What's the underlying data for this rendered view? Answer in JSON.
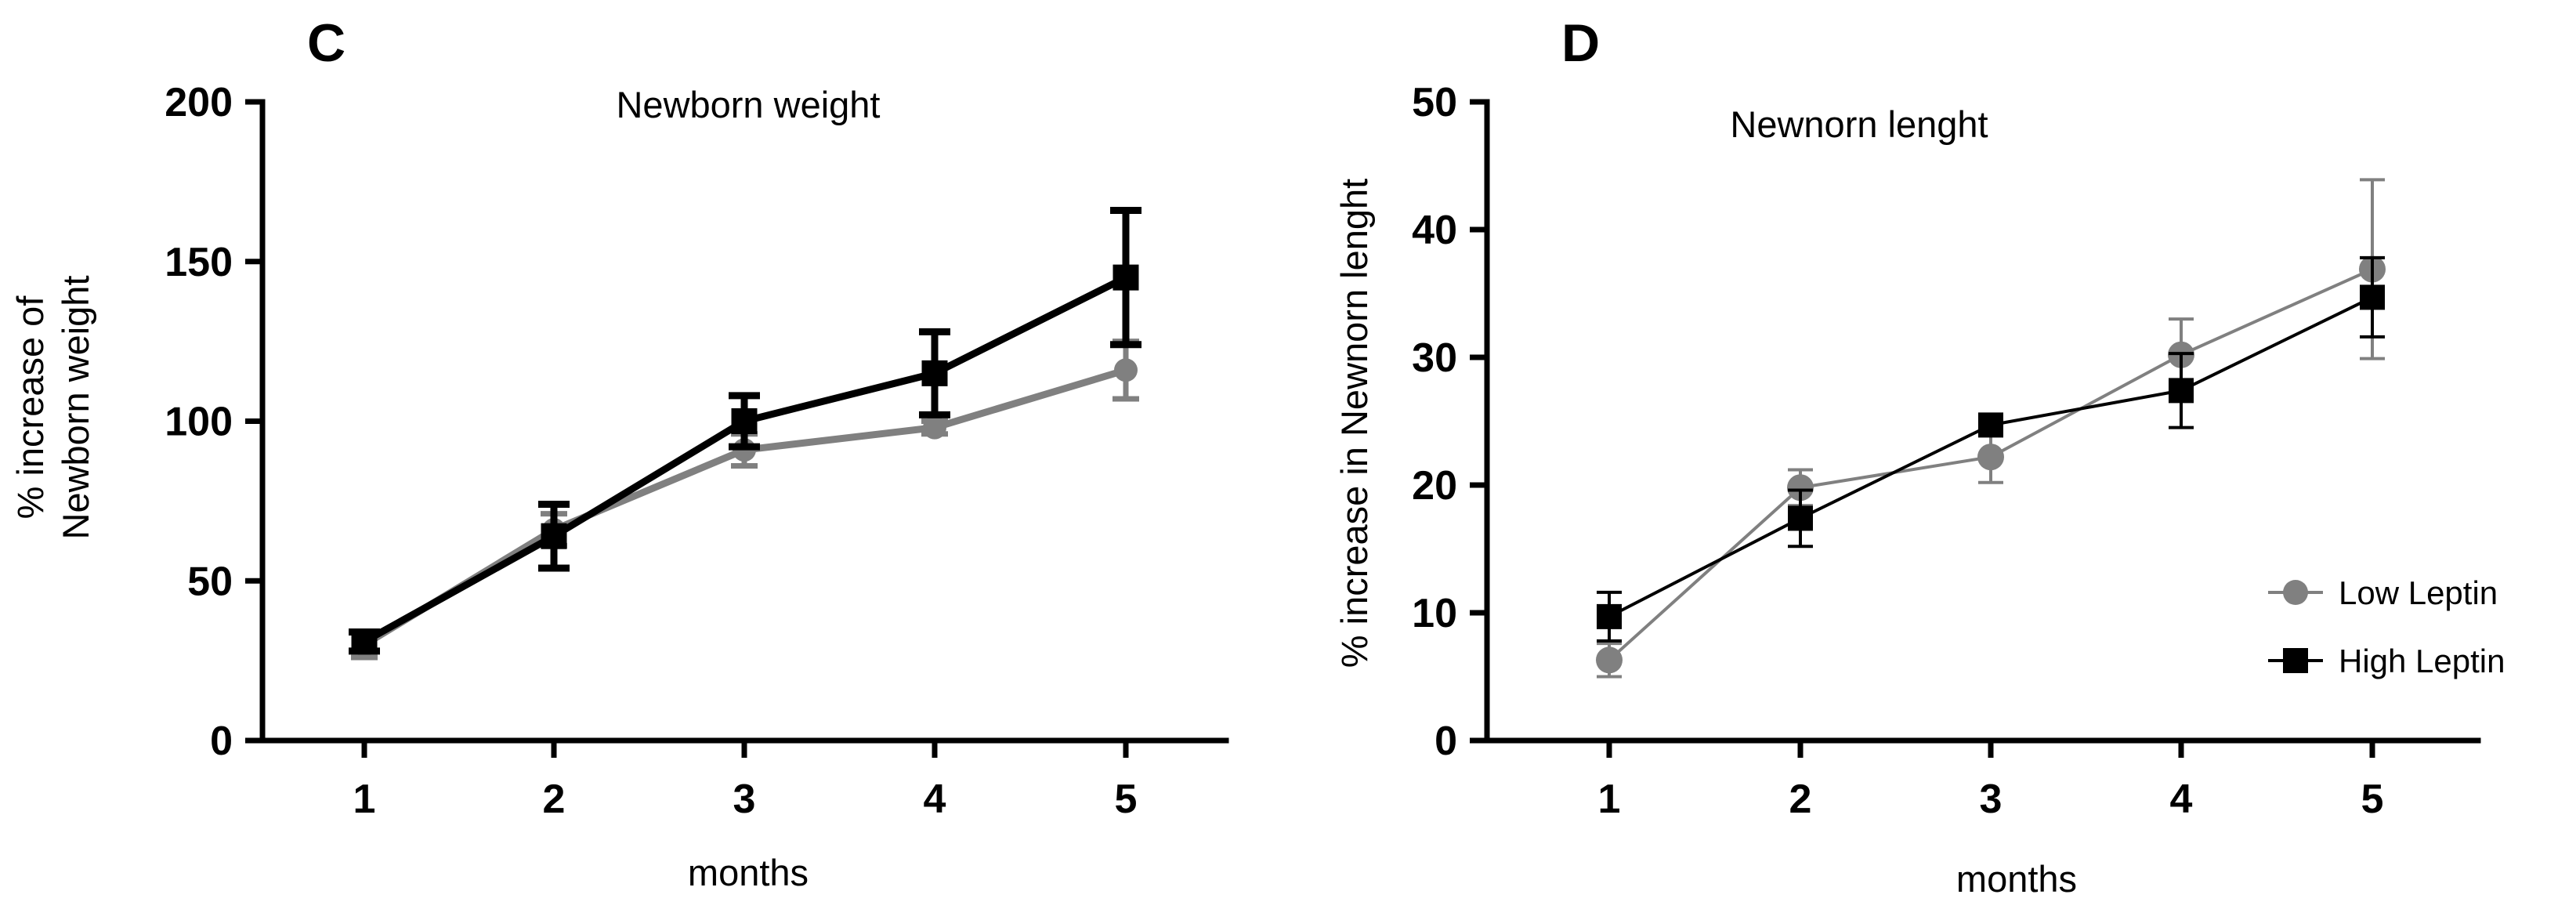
{
  "chart_data": [
    {
      "panel": "C",
      "type": "line",
      "title": "Newborn weight",
      "xlabel": "months",
      "ylabel": [
        "% increase of",
        "Newborn weight"
      ],
      "categories": [
        "1",
        "2",
        "3",
        "4",
        "5"
      ],
      "yticks": [
        "0",
        "50",
        "100",
        "150",
        "200"
      ],
      "ylim": [
        0,
        200
      ],
      "series": [
        {
          "name": "Low Leptin",
          "color": "#808080",
          "marker": "circle",
          "values": [
            30,
            66,
            91,
            98,
            116
          ],
          "err": [
            4,
            5,
            5,
            2,
            9
          ]
        },
        {
          "name": "High Leptin",
          "color": "#000000",
          "marker": "square",
          "values": [
            31,
            64,
            100,
            115,
            145
          ],
          "err": [
            3,
            10,
            8,
            13,
            21
          ]
        }
      ]
    },
    {
      "panel": "D",
      "type": "line",
      "title": "Newnorn lenght",
      "xlabel": "months",
      "ylabel": [
        "% increase in Newnorn lenght"
      ],
      "categories": [
        "1",
        "2",
        "3",
        "4",
        "5"
      ],
      "yticks": [
        "0",
        "10",
        "20",
        "30",
        "40",
        "50"
      ],
      "ylim": [
        0,
        50
      ],
      "legend": {
        "position": "right",
        "entries": [
          "Low Leptin",
          "High Leptin"
        ]
      },
      "series": [
        {
          "name": "Low Leptin",
          "color": "#808080",
          "marker": "circle",
          "values": [
            6.3,
            19.8,
            22.2,
            30.2,
            36.9
          ],
          "err": [
            1.3,
            1.4,
            2.0,
            2.8,
            7.0
          ]
        },
        {
          "name": "High Leptin",
          "color": "#000000",
          "marker": "square",
          "values": [
            9.7,
            17.4,
            24.7,
            27.4,
            34.7
          ],
          "err": [
            1.9,
            2.2,
            0.8,
            2.9,
            3.1
          ]
        }
      ]
    }
  ]
}
